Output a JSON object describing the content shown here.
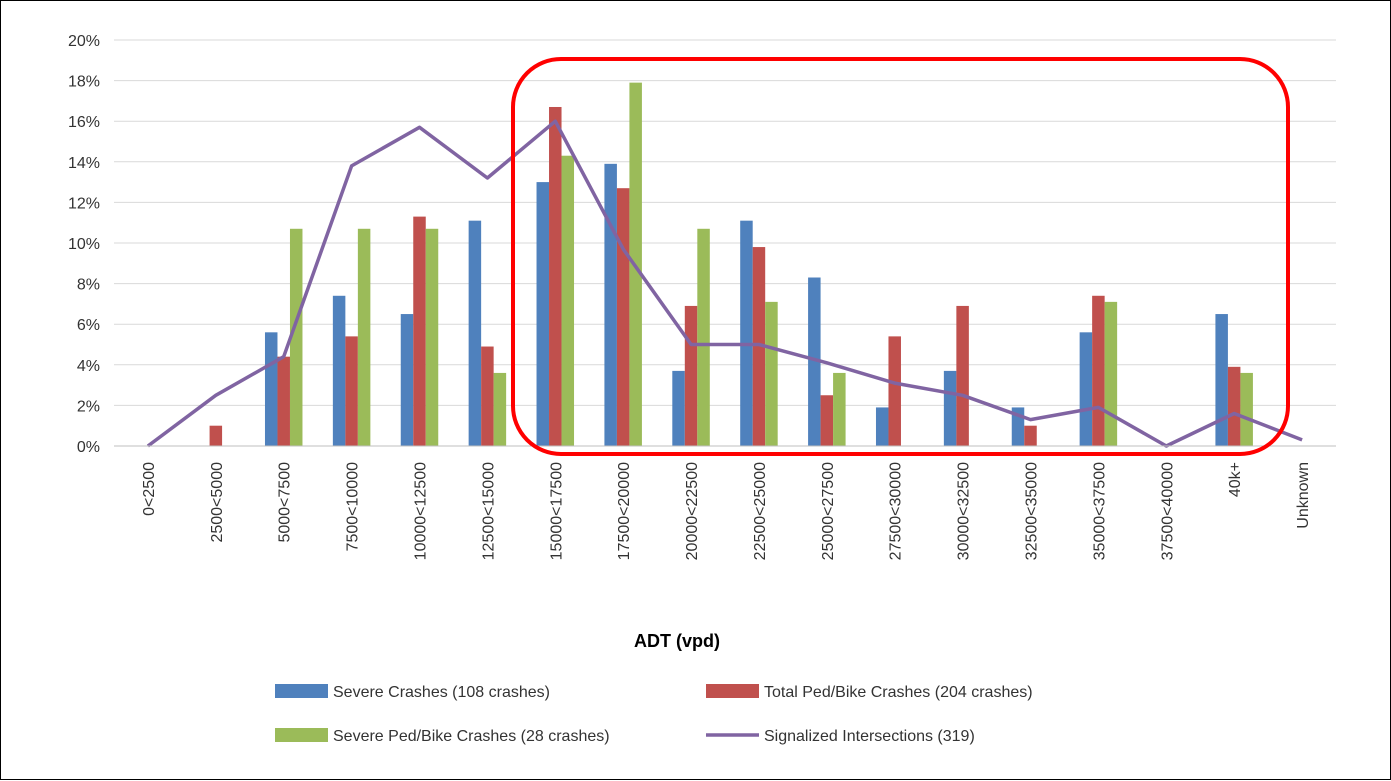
{
  "chart_data": {
    "type": "bar",
    "xlabel": "ADT (vpd)",
    "ylabel": "",
    "ylim": [
      0,
      20
    ],
    "y_ticks": [
      "0%",
      "2%",
      "4%",
      "6%",
      "8%",
      "10%",
      "12%",
      "14%",
      "16%",
      "18%",
      "20%"
    ],
    "y_unit": "%",
    "grid": true,
    "legend_position": "bottom",
    "categories": [
      "0<2500",
      "2500<5000",
      "5000<7500",
      "7500<10000",
      "10000<12500",
      "12500<15000",
      "15000<17500",
      "17500<20000",
      "20000<22500",
      "22500<25000",
      "25000<27500",
      "27500<30000",
      "30000<32500",
      "32500<35000",
      "35000<37500",
      "37500<40000",
      "40k+",
      "Unknown"
    ],
    "series": [
      {
        "name": "Severe Crashes (108 crashes)",
        "type": "bar",
        "color": "#4F81BD",
        "values": [
          0,
          0,
          5.6,
          7.4,
          6.5,
          11.1,
          13.0,
          13.9,
          3.7,
          11.1,
          8.3,
          1.9,
          3.7,
          1.9,
          5.6,
          0,
          6.5,
          0
        ]
      },
      {
        "name": "Total Ped/Bike Crashes (204 crashes)",
        "type": "bar",
        "color": "#C0504D",
        "values": [
          0,
          1.0,
          4.4,
          5.4,
          11.3,
          4.9,
          16.7,
          12.7,
          6.9,
          9.8,
          2.5,
          5.4,
          6.9,
          1.0,
          7.4,
          0,
          3.9,
          0
        ]
      },
      {
        "name": "Severe Ped/Bike Crashes (28 crashes)",
        "type": "bar",
        "color": "#9BBB59",
        "values": [
          0,
          0,
          10.7,
          10.7,
          10.7,
          3.6,
          14.3,
          17.9,
          10.7,
          7.1,
          3.6,
          0,
          0,
          0,
          7.1,
          0,
          3.6,
          0
        ]
      },
      {
        "name": "Signalized Intersections (319)",
        "type": "line",
        "color": "#8064A2",
        "values": [
          0,
          2.5,
          4.4,
          13.8,
          15.7,
          13.2,
          16.0,
          9.7,
          5.0,
          5.0,
          4.1,
          3.1,
          2.5,
          1.3,
          1.9,
          0,
          1.6,
          0.3
        ]
      }
    ],
    "annotation": {
      "shape": "rounded-rectangle",
      "color": "#FF0000"
    }
  }
}
